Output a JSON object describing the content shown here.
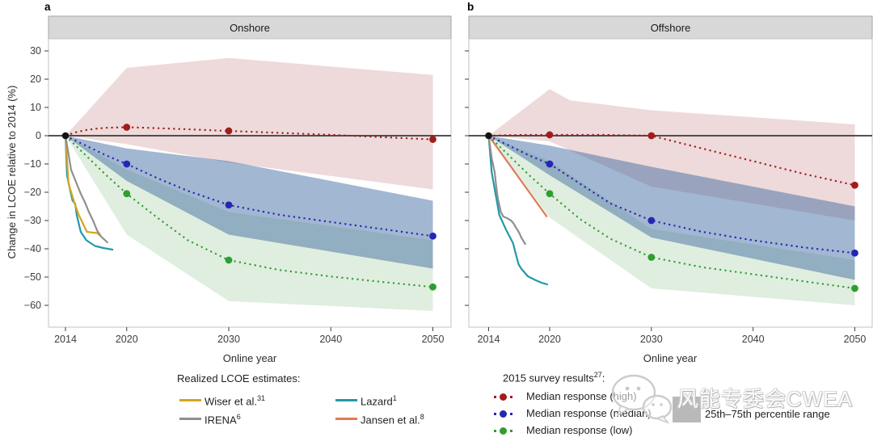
{
  "panels": [
    {
      "letter": "a",
      "title": "Onshore"
    },
    {
      "letter": "b",
      "title": "Offshore"
    }
  ],
  "axis": {
    "y_title": "Change in LCOE relative to 2014 (%)",
    "x_title": "Online year",
    "y_ticks": [
      30,
      20,
      10,
      0,
      -10,
      -20,
      -30,
      -40,
      -50,
      -60
    ],
    "x_ticks": [
      2014,
      2020,
      2030,
      2040,
      2050
    ]
  },
  "colors": {
    "high": "#a21c1c",
    "median": "#2626b4",
    "low": "#2f9e30",
    "wiser": "#d6a51d",
    "irena": "#8f8f8f",
    "lazard": "#2399a9",
    "jansen": "#e07a55",
    "percentile_box": "#b9b9b9",
    "high_band": "rgba(193,119,119,0.27)",
    "median_band": "rgba(58,103,157,0.47)",
    "low_band": "rgba(110,175,110,0.21)"
  },
  "legend_left": {
    "title": "Realized LCOE estimates:",
    "items": [
      {
        "label": "Wiser et al.",
        "sup": "31",
        "color": "#d6a51d"
      },
      {
        "label": "IRENA",
        "sup": "6",
        "color": "#8f8f8f"
      },
      {
        "label": "Lazard",
        "sup": "1",
        "color": "#2399a9"
      },
      {
        "label": "Jansen et al.",
        "sup": "8",
        "color": "#e07a55"
      }
    ]
  },
  "legend_right": {
    "title": "2015 survey results",
    "title_sup": "27",
    "title_colon": ":",
    "items": [
      {
        "label": "Median response (high)",
        "color": "#a21c1c"
      },
      {
        "label": "Median response (median)",
        "color": "#2626b4"
      },
      {
        "label": "Median response (low)",
        "color": "#2f9e30"
      }
    ],
    "percentile": {
      "label": "25th–75th percentile range",
      "color": "#b9b9b9"
    }
  },
  "watermark": {
    "text": "风能专委会CWEA"
  },
  "chart_data": [
    {
      "type": "line",
      "title": "Onshore",
      "xlabel": "Online year",
      "ylabel": "Change in LCOE relative to 2014 (%)",
      "xlim": [
        2012.3,
        2051.8
      ],
      "ylim": [
        -67.7,
        34.3
      ],
      "grid": false,
      "start_marker": [
        2014,
        0
      ],
      "bands": [
        {
          "name": "high-percentile-band",
          "color": "rgba(193,119,119,0.27)",
          "upper": [
            [
              2014,
              0
            ],
            [
              2020,
              24
            ],
            [
              2030,
              27.5
            ],
            [
              2050,
              21.5
            ]
          ],
          "lower": [
            [
              2014,
              0
            ],
            [
              2020,
              -3
            ],
            [
              2030,
              -9.5
            ],
            [
              2050,
              -19
            ]
          ]
        },
        {
          "name": "low-percentile-band",
          "color": "rgba(110,175,110,0.21)",
          "upper": [
            [
              2014,
              0
            ],
            [
              2020,
              -12
            ],
            [
              2030,
              -27
            ],
            [
              2050,
              -37
            ]
          ],
          "lower": [
            [
              2014,
              0
            ],
            [
              2020,
              -35
            ],
            [
              2030,
              -58.5
            ],
            [
              2050,
              -62
            ]
          ]
        },
        {
          "name": "median-percentile-band",
          "color": "rgba(58,103,157,0.47)",
          "upper": [
            [
              2014,
              0
            ],
            [
              2020,
              -4.5
            ],
            [
              2030,
              -9
            ],
            [
              2050,
              -23
            ]
          ],
          "lower": [
            [
              2014,
              0
            ],
            [
              2020,
              -16
            ],
            [
              2030,
              -35
            ],
            [
              2050,
              -47
            ]
          ]
        }
      ],
      "survey_series": [
        {
          "name": "Median response (high)",
          "color": "#a21c1c",
          "style": "dotted",
          "points": [
            [
              2014,
              0
            ],
            [
              2015,
              1.2
            ],
            [
              2016,
              2
            ],
            [
              2017,
              2.5
            ],
            [
              2018,
              2.8
            ],
            [
              2020,
              3
            ],
            [
              2022,
              2.8
            ],
            [
              2025,
              2.4
            ],
            [
              2030,
              1.7
            ],
            [
              2035,
              1
            ],
            [
              2040,
              0.3
            ],
            [
              2045,
              -0.5
            ],
            [
              2050,
              -1.3
            ]
          ],
          "markers": [
            [
              2020,
              3
            ],
            [
              2030,
              1.7
            ],
            [
              2050,
              -1.3
            ]
          ]
        },
        {
          "name": "Median response (median)",
          "color": "#2626b4",
          "style": "dotted",
          "points": [
            [
              2014,
              0
            ],
            [
              2016,
              -3.5
            ],
            [
              2018,
              -7
            ],
            [
              2020,
              -10
            ],
            [
              2023,
              -15
            ],
            [
              2026,
              -19.5
            ],
            [
              2030,
              -24.5
            ],
            [
              2035,
              -28
            ],
            [
              2040,
              -30.5
            ],
            [
              2045,
              -33
            ],
            [
              2050,
              -35.5
            ]
          ],
          "markers": [
            [
              2020,
              -10
            ],
            [
              2030,
              -24.5
            ],
            [
              2050,
              -35.5
            ]
          ]
        },
        {
          "name": "Median response (low)",
          "color": "#2f9e30",
          "style": "dotted",
          "points": [
            [
              2014,
              0
            ],
            [
              2016,
              -7
            ],
            [
              2018,
              -14
            ],
            [
              2020,
              -20.5
            ],
            [
              2023,
              -29
            ],
            [
              2026,
              -37
            ],
            [
              2030,
              -44
            ],
            [
              2035,
              -47.5
            ],
            [
              2040,
              -49.8
            ],
            [
              2045,
              -51.7
            ],
            [
              2050,
              -53.5
            ]
          ],
          "markers": [
            [
              2020,
              -20.5
            ],
            [
              2030,
              -44
            ],
            [
              2050,
              -53.5
            ]
          ]
        }
      ],
      "realized_series": [
        {
          "name": "Lazard",
          "color": "#2399a9",
          "points": [
            [
              2014,
              0
            ],
            [
              2014.15,
              -14
            ],
            [
              2014.5,
              -20
            ],
            [
              2014.7,
              -23
            ],
            [
              2014.95,
              -24
            ],
            [
              2015.1,
              -28
            ],
            [
              2015.5,
              -34
            ],
            [
              2016.05,
              -37
            ],
            [
              2016.9,
              -39
            ],
            [
              2017.7,
              -39.7
            ],
            [
              2018.6,
              -40.3
            ]
          ]
        },
        {
          "name": "Wiser et al.",
          "color": "#d6a51d",
          "points": [
            [
              2014,
              0
            ],
            [
              2014.3,
              -17
            ],
            [
              2014.9,
              -24
            ],
            [
              2015.3,
              -28
            ],
            [
              2015.7,
              -31
            ],
            [
              2016.1,
              -34
            ],
            [
              2016.7,
              -34.3
            ],
            [
              2017.1,
              -34.4
            ],
            [
              2017.35,
              -35.2
            ]
          ]
        },
        {
          "name": "IRENA",
          "color": "#8f8f8f",
          "points": [
            [
              2014,
              0
            ],
            [
              2014.55,
              -12
            ],
            [
              2015.1,
              -17
            ],
            [
              2015.5,
              -20.5
            ],
            [
              2015.9,
              -23.5
            ],
            [
              2016.3,
              -27
            ],
            [
              2016.7,
              -30
            ],
            [
              2017.1,
              -33.5
            ],
            [
              2017.5,
              -35.7
            ],
            [
              2018.1,
              -37.7
            ]
          ]
        }
      ]
    },
    {
      "type": "line",
      "title": "Offshore",
      "xlabel": "Online year",
      "ylabel": "Change in LCOE relative to 2014 (%)",
      "xlim": [
        2012.3,
        2051.8
      ],
      "ylim": [
        -67.7,
        34.3
      ],
      "grid": false,
      "start_marker": [
        2014,
        0
      ],
      "bands": [
        {
          "name": "high-percentile-band",
          "color": "rgba(193,119,119,0.27)",
          "upper": [
            [
              2014,
              0
            ],
            [
              2020,
              16.5
            ],
            [
              2022,
              12.5
            ],
            [
              2030,
              9
            ],
            [
              2050,
              4
            ]
          ],
          "lower": [
            [
              2014,
              0
            ],
            [
              2020,
              -2
            ],
            [
              2030,
              -18
            ],
            [
              2050,
              -30
            ]
          ]
        },
        {
          "name": "low-percentile-band",
          "color": "rgba(110,175,110,0.21)",
          "upper": [
            [
              2014,
              0
            ],
            [
              2020,
              -9
            ],
            [
              2030,
              -33
            ],
            [
              2050,
              -44
            ]
          ],
          "lower": [
            [
              2014,
              0
            ],
            [
              2020,
              -29
            ],
            [
              2030,
              -54
            ],
            [
              2050,
              -60
            ]
          ]
        },
        {
          "name": "median-percentile-band",
          "color": "rgba(58,103,157,0.47)",
          "upper": [
            [
              2014,
              0
            ],
            [
              2020,
              -3.5
            ],
            [
              2030,
              -11
            ],
            [
              2050,
              -25
            ]
          ],
          "lower": [
            [
              2014,
              0
            ],
            [
              2020,
              -14
            ],
            [
              2030,
              -36
            ],
            [
              2050,
              -51
            ]
          ]
        }
      ],
      "survey_series": [
        {
          "name": "Median response (high)",
          "color": "#a21c1c",
          "style": "dotted",
          "points": [
            [
              2014,
              0
            ],
            [
              2016,
              0.2
            ],
            [
              2018,
              0.3
            ],
            [
              2020,
              0.3
            ],
            [
              2025,
              0.3
            ],
            [
              2030,
              0
            ],
            [
              2035,
              -4.5
            ],
            [
              2040,
              -9
            ],
            [
              2045,
              -13.5
            ],
            [
              2050,
              -17.5
            ]
          ],
          "markers": [
            [
              2020,
              0.3
            ],
            [
              2030,
              0
            ],
            [
              2050,
              -17.5
            ]
          ]
        },
        {
          "name": "Median response (median)",
          "color": "#2626b4",
          "style": "dotted",
          "points": [
            [
              2014,
              0
            ],
            [
              2016,
              -3.5
            ],
            [
              2018,
              -7
            ],
            [
              2020,
              -10
            ],
            [
              2023,
              -17
            ],
            [
              2026,
              -24
            ],
            [
              2030,
              -30
            ],
            [
              2035,
              -34
            ],
            [
              2040,
              -37
            ],
            [
              2045,
              -39.5
            ],
            [
              2050,
              -41.5
            ]
          ],
          "markers": [
            [
              2020,
              -10
            ],
            [
              2030,
              -30
            ],
            [
              2050,
              -41.5
            ]
          ]
        },
        {
          "name": "Median response (low)",
          "color": "#2f9e30",
          "style": "dotted",
          "points": [
            [
              2014,
              0
            ],
            [
              2016,
              -7
            ],
            [
              2018,
              -14
            ],
            [
              2020,
              -20.5
            ],
            [
              2023,
              -29.5
            ],
            [
              2026,
              -36.5
            ],
            [
              2030,
              -43
            ],
            [
              2035,
              -46.5
            ],
            [
              2040,
              -49
            ],
            [
              2045,
              -51.5
            ],
            [
              2050,
              -54
            ]
          ],
          "markers": [
            [
              2020,
              -20.5
            ],
            [
              2030,
              -43
            ],
            [
              2050,
              -54
            ]
          ]
        }
      ],
      "realized_series": [
        {
          "name": "Lazard",
          "color": "#2399a9",
          "points": [
            [
              2014,
              0
            ],
            [
              2014.3,
              -13
            ],
            [
              2014.7,
              -21
            ],
            [
              2015.05,
              -28
            ],
            [
              2015.75,
              -33.5
            ],
            [
              2016.4,
              -38
            ],
            [
              2016.65,
              -41.5
            ],
            [
              2016.95,
              -45.5
            ],
            [
              2017.2,
              -47
            ],
            [
              2017.85,
              -49.7
            ],
            [
              2018.55,
              -51
            ],
            [
              2019.2,
              -52
            ],
            [
              2019.75,
              -52.6
            ]
          ]
        },
        {
          "name": "IRENA",
          "color": "#8f8f8f",
          "points": [
            [
              2014,
              0
            ],
            [
              2014.3,
              -8
            ],
            [
              2014.6,
              -13
            ],
            [
              2014.75,
              -18
            ],
            [
              2014.9,
              -22
            ],
            [
              2015.05,
              -24.5
            ],
            [
              2015.2,
              -27
            ],
            [
              2015.45,
              -28.6
            ],
            [
              2015.8,
              -29.1
            ],
            [
              2016.2,
              -30
            ],
            [
              2016.45,
              -31
            ],
            [
              2016.7,
              -32.6
            ],
            [
              2017,
              -34.3
            ],
            [
              2017.25,
              -36.3
            ],
            [
              2017.6,
              -38.3
            ]
          ]
        },
        {
          "name": "Jansen et al.",
          "color": "#e07a55",
          "points": [
            [
              2014,
              0
            ],
            [
              2015,
              -5
            ],
            [
              2016,
              -10
            ],
            [
              2017,
              -15
            ],
            [
              2018,
              -20
            ],
            [
              2019,
              -25
            ],
            [
              2019.7,
              -28.5
            ]
          ]
        }
      ]
    }
  ]
}
